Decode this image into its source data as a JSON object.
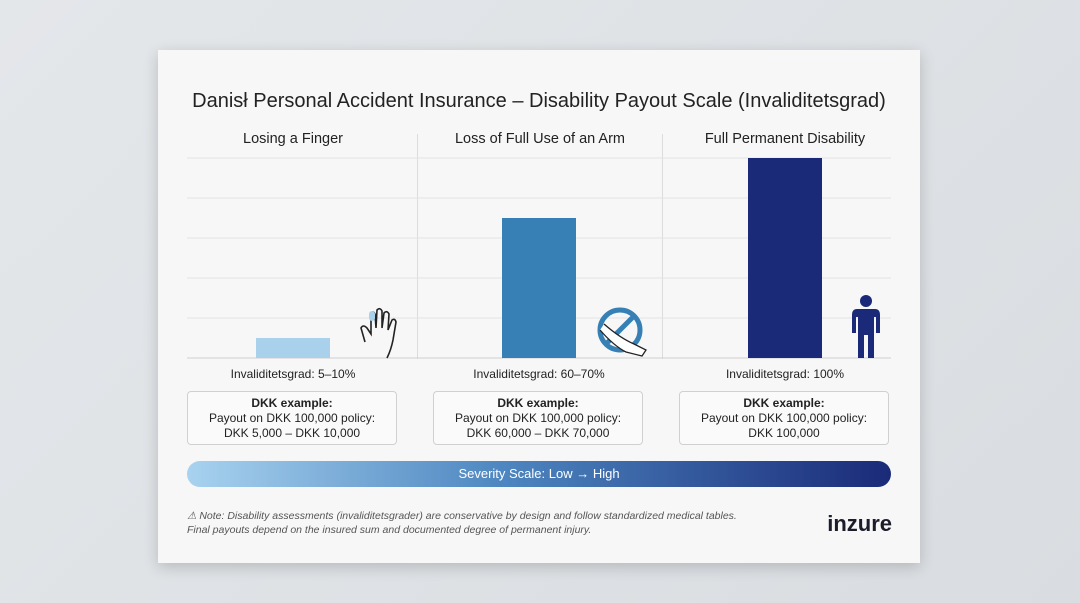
{
  "title": "Danisł Personal Accident Insurance – Disability Payout Scale (Invaliditetsgrad)",
  "chart_data": {
    "type": "bar",
    "categories": [
      "Losing a Finger",
      "Loss of Full Use of an Arm",
      "Full Permanent Disability"
    ],
    "values": [
      10,
      70,
      100
    ],
    "ylim": [
      0,
      100
    ],
    "grid": true,
    "colors": [
      "#a9d1ec",
      "#3680b6",
      "#1b2a78"
    ]
  },
  "columns": [
    {
      "header": "Losing a Finger",
      "invaliditetsgrad": "Invaliditetsgrad: 5–10%",
      "box_title": "DKK example:",
      "box_line1": "Payout on DKK 100,000 policy:",
      "box_line2": "DKK 5,000 – DKK 10,000",
      "icon": "hand-icon"
    },
    {
      "header": "Loss of Full Use of an Arm",
      "invaliditetsgrad": "Invaliditetsgrad: 60–70%",
      "box_title": "DKK example:",
      "box_line1": "Payout on DKK 100,000 policy:",
      "box_line2": "DKK 60,000 – DKK 70,000",
      "icon": "arm-prohibited-icon"
    },
    {
      "header": "Full Permanent Disability",
      "invaliditetsgrad": "Invaliditetsgrad: 100%",
      "box_title": "DKK example:",
      "box_line1": "Payout on DKK 100,000 policy:",
      "box_line2": "DKK 100,000",
      "icon": "person-icon"
    }
  ],
  "severity": "Severity Scale: Low → High",
  "note_line1": "⚠ Note: Disability assessments (invaliditetsgrader) are conservative by design and follow standardized medical tables.",
  "note_line2": "Final payouts depend on the insured sum and documented degree of permanent injury.",
  "logo": "inzure"
}
